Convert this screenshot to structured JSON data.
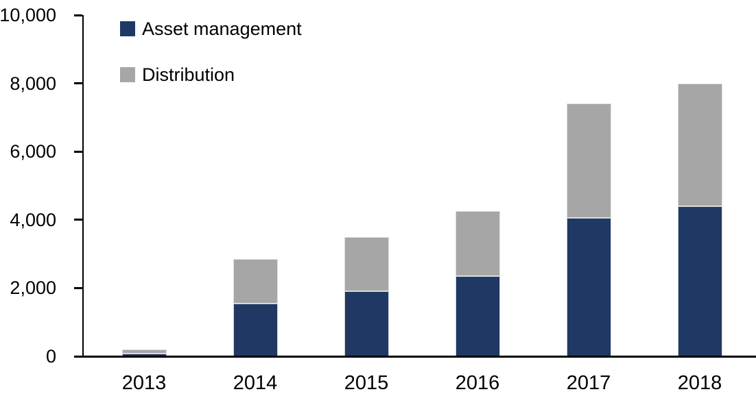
{
  "chart_data": {
    "type": "bar",
    "stacked": true,
    "title": "",
    "xlabel": "",
    "ylabel": "",
    "categories": [
      "2013",
      "2014",
      "2015",
      "2016",
      "2017",
      "2018"
    ],
    "series": [
      {
        "name": "Asset management",
        "color": "#203864",
        "values": [
          90,
          1550,
          1900,
          2350,
          4050,
          4400
        ]
      },
      {
        "name": "Distribution",
        "color": "#a6a6a6",
        "values": [
          120,
          1300,
          1600,
          1900,
          3350,
          3600
        ]
      }
    ],
    "totals": [
      210,
      2850,
      3500,
      4250,
      7400,
      8000
    ],
    "ylim": [
      0,
      10000
    ],
    "ytick_step": 2000,
    "ytick_labels": [
      "0",
      "2,000",
      "4,000",
      "6,000",
      "8,000",
      "10,000"
    ],
    "grid": false,
    "legend_position": "top-left",
    "axis_color": "#000000",
    "background_color": "#ffffff"
  },
  "legend": {
    "items": [
      {
        "label": "Asset management",
        "color": "#203864"
      },
      {
        "label": "Distribution",
        "color": "#a6a6a6"
      }
    ]
  }
}
